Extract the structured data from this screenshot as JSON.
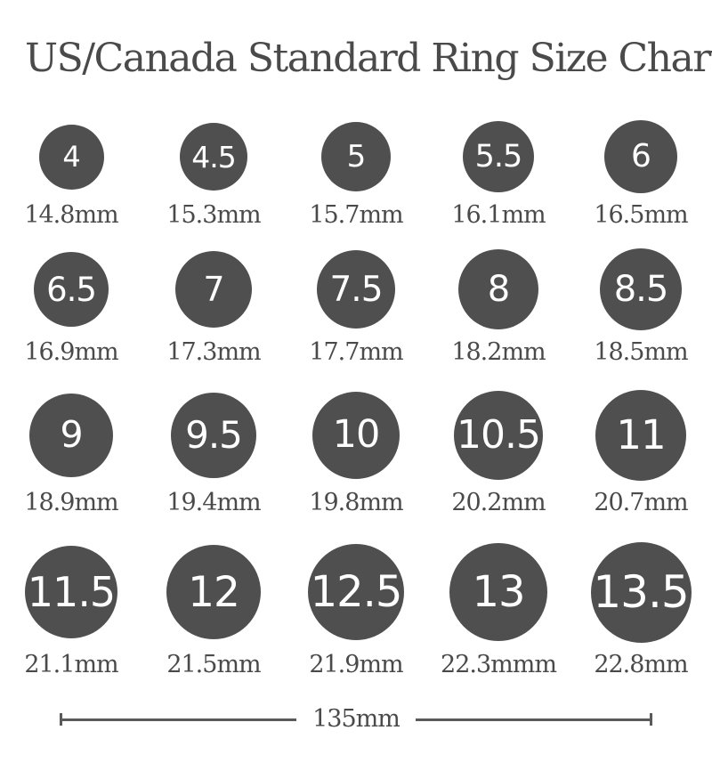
{
  "title": "US/Canada Standard Ring Size Chart",
  "colors": {
    "circle_fill": "#4f4f4f",
    "text": "#4a4a4a",
    "number_text": "#ffffff",
    "scale_line": "#5a5a5a",
    "background": "#ffffff"
  },
  "chart_data": {
    "type": "table",
    "title": "US/Canada Standard Ring Size Chart",
    "columns": [
      "us_canada_ring_size",
      "inner_diameter_mm"
    ],
    "series": [
      {
        "name": "us_canada_ring_size",
        "values": [
          4,
          4.5,
          5,
          5.5,
          6,
          6.5,
          7,
          7.5,
          8,
          8.5,
          9,
          9.5,
          10,
          10.5,
          11,
          11.5,
          12,
          12.5,
          13,
          13.5
        ]
      },
      {
        "name": "inner_diameter_mm",
        "values": [
          14.8,
          15.3,
          15.7,
          16.1,
          16.5,
          16.9,
          17.3,
          17.7,
          18.2,
          18.5,
          18.9,
          19.4,
          19.8,
          20.2,
          20.7,
          21.1,
          21.5,
          21.9,
          22.3,
          22.8
        ]
      }
    ],
    "layout": "5 columns x 4 rows of filled circles, circle diameter proportional to mm value",
    "scale_reference": {
      "label": "135mm",
      "value_mm": 135
    }
  },
  "rows": [
    {
      "items": [
        {
          "size": "4",
          "diameter_mm": 14.8,
          "label": "14.8mm"
        },
        {
          "size": "4.5",
          "diameter_mm": 15.3,
          "label": "15.3mm"
        },
        {
          "size": "5",
          "diameter_mm": 15.7,
          "label": "15.7mm"
        },
        {
          "size": "5.5",
          "diameter_mm": 16.1,
          "label": "16.1mm"
        },
        {
          "size": "6",
          "diameter_mm": 16.5,
          "label": "16.5mm"
        }
      ]
    },
    {
      "items": [
        {
          "size": "6.5",
          "diameter_mm": 16.9,
          "label": "16.9mm"
        },
        {
          "size": "7",
          "diameter_mm": 17.3,
          "label": "17.3mm"
        },
        {
          "size": "7.5",
          "diameter_mm": 17.7,
          "label": "17.7mm"
        },
        {
          "size": "8",
          "diameter_mm": 18.2,
          "label": "18.2mm"
        },
        {
          "size": "8.5",
          "diameter_mm": 18.5,
          "label": "18.5mm"
        }
      ]
    },
    {
      "items": [
        {
          "size": "9",
          "diameter_mm": 18.9,
          "label": "18.9mm"
        },
        {
          "size": "9.5",
          "diameter_mm": 19.4,
          "label": "19.4mm"
        },
        {
          "size": "10",
          "diameter_mm": 19.8,
          "label": "19.8mm"
        },
        {
          "size": "10.5",
          "diameter_mm": 20.2,
          "label": "20.2mm"
        },
        {
          "size": "11",
          "diameter_mm": 20.7,
          "label": "20.7mm"
        }
      ]
    },
    {
      "items": [
        {
          "size": "11.5",
          "diameter_mm": 21.1,
          "label": "21.1mm"
        },
        {
          "size": "12",
          "diameter_mm": 21.5,
          "label": "21.5mm"
        },
        {
          "size": "12.5",
          "diameter_mm": 21.9,
          "label": "21.9mm"
        },
        {
          "size": "13",
          "diameter_mm": 22.3,
          "label": "22.3mmm"
        },
        {
          "size": "13.5",
          "diameter_mm": 22.8,
          "label": "22.8mm"
        }
      ]
    }
  ],
  "scale_bar": {
    "label": "135mm"
  }
}
